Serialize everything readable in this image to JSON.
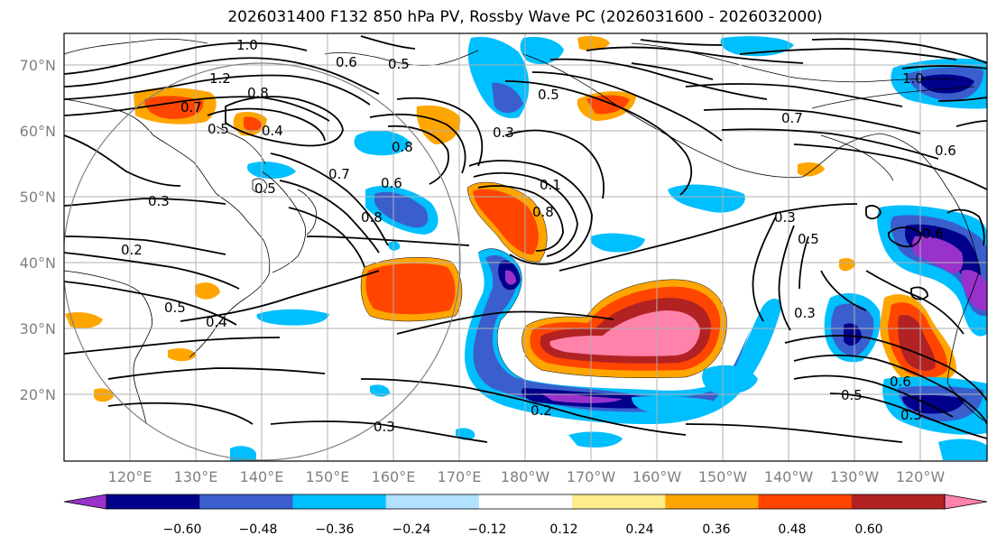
{
  "title": "2026031400 F132 850 hPa PV, Rossby Wave PC (2026031600 - 2026032000)",
  "lat_labels": [
    "70°N",
    "60°N",
    "50°N",
    "40°N",
    "30°N",
    "20°N"
  ],
  "lon_labels": [
    "120°E",
    "130°E",
    "140°E",
    "150°E",
    "160°E",
    "170°E",
    "180°W",
    "170°W",
    "160°W",
    "150°W",
    "140°W",
    "130°W",
    "120°W"
  ],
  "colorbar": {
    "colors": [
      "#9932cc",
      "#00008b",
      "#3a5fcd",
      "#00bfff",
      "#b0e2ff",
      "#ffffff",
      "#ffec8b",
      "#ffa500",
      "#ff4500",
      "#b22222",
      "#ff82ab"
    ],
    "tick_labels": [
      "−0.60",
      "−0.48",
      "−0.36",
      "−0.24",
      "−0.12",
      "0.12",
      "0.24",
      "0.36",
      "0.48",
      "0.60"
    ]
  },
  "contour_labels": [
    "1.0",
    "0.6",
    "0.5",
    "1.2",
    "0.8",
    "0.7",
    "0.5",
    "0.4",
    "0.8",
    "0.7",
    "0.5",
    "0.6",
    "0.8",
    "0.3",
    "0.2",
    "0.5",
    "0.4",
    "0.8",
    "0.1",
    "0.3",
    "0.5",
    "0.7",
    "1.0",
    "0.6",
    "0.3",
    "0.6",
    "0.5",
    "0.3",
    "0.5",
    "0.6",
    "0.3",
    "0.2",
    "0.3"
  ]
}
